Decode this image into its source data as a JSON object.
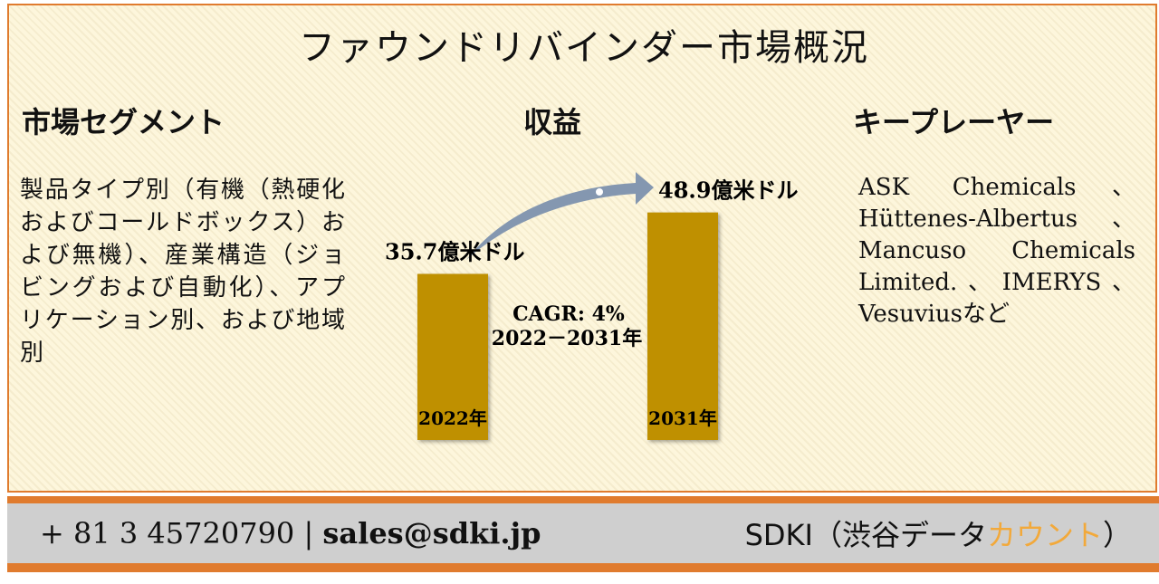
{
  "title": "ファウンドリバインダー市場概況",
  "segments": {
    "heading": "市場セグメント",
    "text": "製品タイプ別（有機（熱硬化およびコールドボックス）および無機）、産業構造（ジョビングおよび自動化）、アプリケーション別、および地域別"
  },
  "revenue": {
    "heading": "収益"
  },
  "key_players": {
    "heading": "キープレーヤー",
    "text": "ASK Chemicals、Hüttenes-Albertus、Mancuso Chemicals Limited.、IMERYS、Vesuviusなど"
  },
  "chart_data": {
    "type": "bar",
    "categories": [
      "2022年",
      "2031年"
    ],
    "values": [
      35.7,
      48.9
    ],
    "value_labels": [
      "35.7億米ドル",
      "48.9億米ドル"
    ],
    "annotation": [
      "CAGR: 4%",
      "2022－2031年"
    ],
    "bar_color": "#bf9000",
    "arrow_color": "#8497b0"
  },
  "footer": {
    "phone": "+ 81 3 45720790",
    "separator": "|",
    "email": "sales@sdki.jp",
    "brand_prefix": "SDKI（渋谷データ",
    "brand_highlight": "カウント",
    "brand_suffix": "）",
    "accent_color": "#e07b2e"
  }
}
